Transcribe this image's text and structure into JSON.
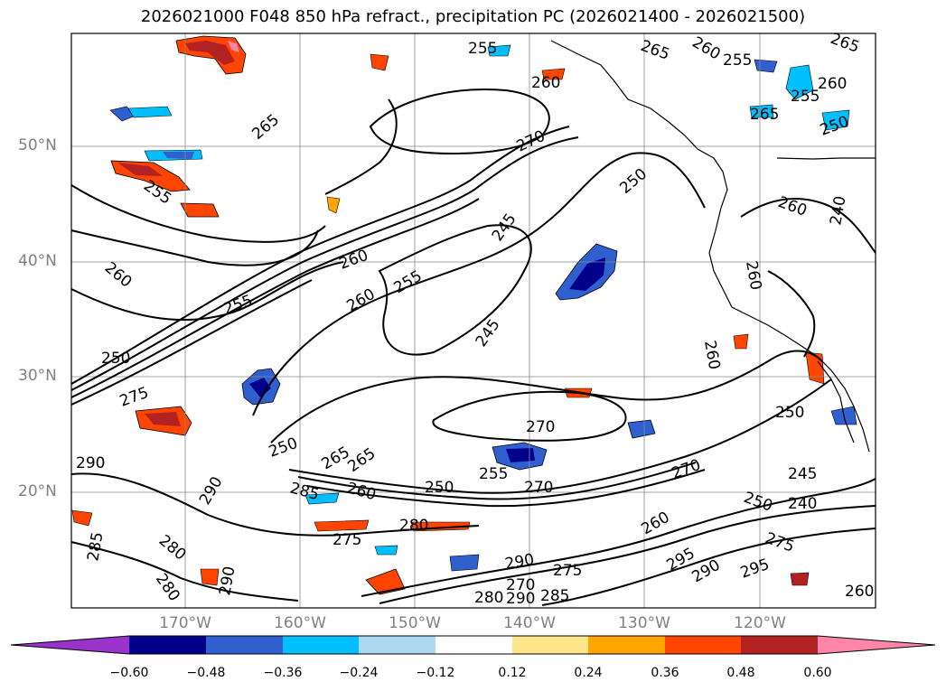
{
  "title": "2026021000 F048 850 hPa refract., precipitation PC (2026021400 - 2026021500)",
  "lat_labels": [
    "50°N",
    "40°N",
    "30°N",
    "20°N"
  ],
  "lon_labels": [
    "170°W",
    "160°W",
    "150°W",
    "140°W",
    "130°W",
    "120°W"
  ],
  "colorbar": {
    "ticks": [
      "−0.60",
      "−0.48",
      "−0.36",
      "−0.24",
      "−0.12",
      "0.12",
      "0.24",
      "0.36",
      "0.48",
      "0.60"
    ],
    "colors": [
      "#9933cc",
      "#00008b",
      "#3060d0",
      "#00bfff",
      "#add8f0",
      "#ffffff",
      "#fde68a",
      "#ffa500",
      "#ff4500",
      "#b22222",
      "#ff85a8"
    ]
  },
  "contour_labels": [
    "255",
    "265",
    "260",
    "265",
    "260",
    "255",
    "260",
    "255",
    "250",
    "265",
    "265",
    "270",
    "250",
    "255",
    "260",
    "245",
    "260",
    "255",
    "255",
    "260",
    "260",
    "245",
    "270",
    "250",
    "270",
    "250",
    "265",
    "255",
    "285",
    "260",
    "250",
    "270",
    "265",
    "245",
    "240",
    "250",
    "290",
    "275",
    "280",
    "285",
    "280",
    "290",
    "270",
    "290",
    "295",
    "290",
    "295",
    "260",
    "280",
    "275",
    "280",
    "290",
    "275",
    "285",
    "290",
    "250",
    "260",
    "260",
    "275",
    "260",
    "240"
  ]
}
